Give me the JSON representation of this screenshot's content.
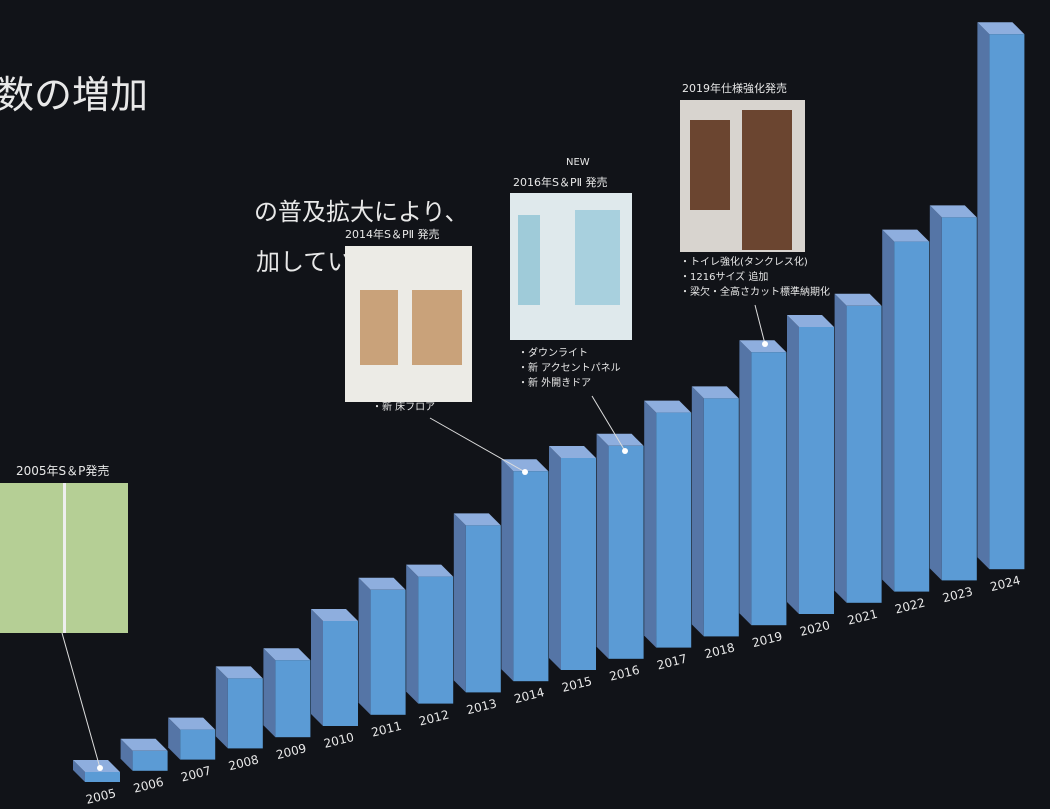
{
  "chart_data": {
    "type": "bar",
    "title": "数の増加",
    "subtitle": [
      "の普及拡大により、",
      "加しています。"
    ],
    "categories": [
      "2005",
      "2006",
      "2007",
      "2008",
      "2009",
      "2010",
      "2011",
      "2012",
      "2013",
      "2014",
      "2015",
      "2016",
      "2017",
      "2018",
      "2019",
      "2020",
      "2021",
      "2022",
      "2023",
      "2024"
    ],
    "values": [
      10,
      20,
      30,
      70,
      77,
      105,
      125,
      127,
      167,
      210,
      212,
      213,
      235,
      238,
      273,
      287,
      297,
      350,
      363,
      535
    ],
    "color": "#5b9bd5",
    "annotations": [
      {
        "label": "2005年S＆P発売",
        "lines": []
      },
      {
        "label": "2014年S＆PⅡ 発売",
        "lines": [
          "・新 床フロア"
        ]
      },
      {
        "badge": "NEW",
        "label": "2016年S＆PⅡ 発売",
        "lines": [
          "・ダウンライト",
          "・新 アクセントパネル",
          "・新 外開きドア"
        ]
      },
      {
        "label": "2019年仕様強化発売",
        "lines": [
          "・トイレ強化(タンクレス化)",
          "・1216サイズ 追加",
          "・梁欠・全高さカット標準納期化"
        ]
      }
    ]
  }
}
